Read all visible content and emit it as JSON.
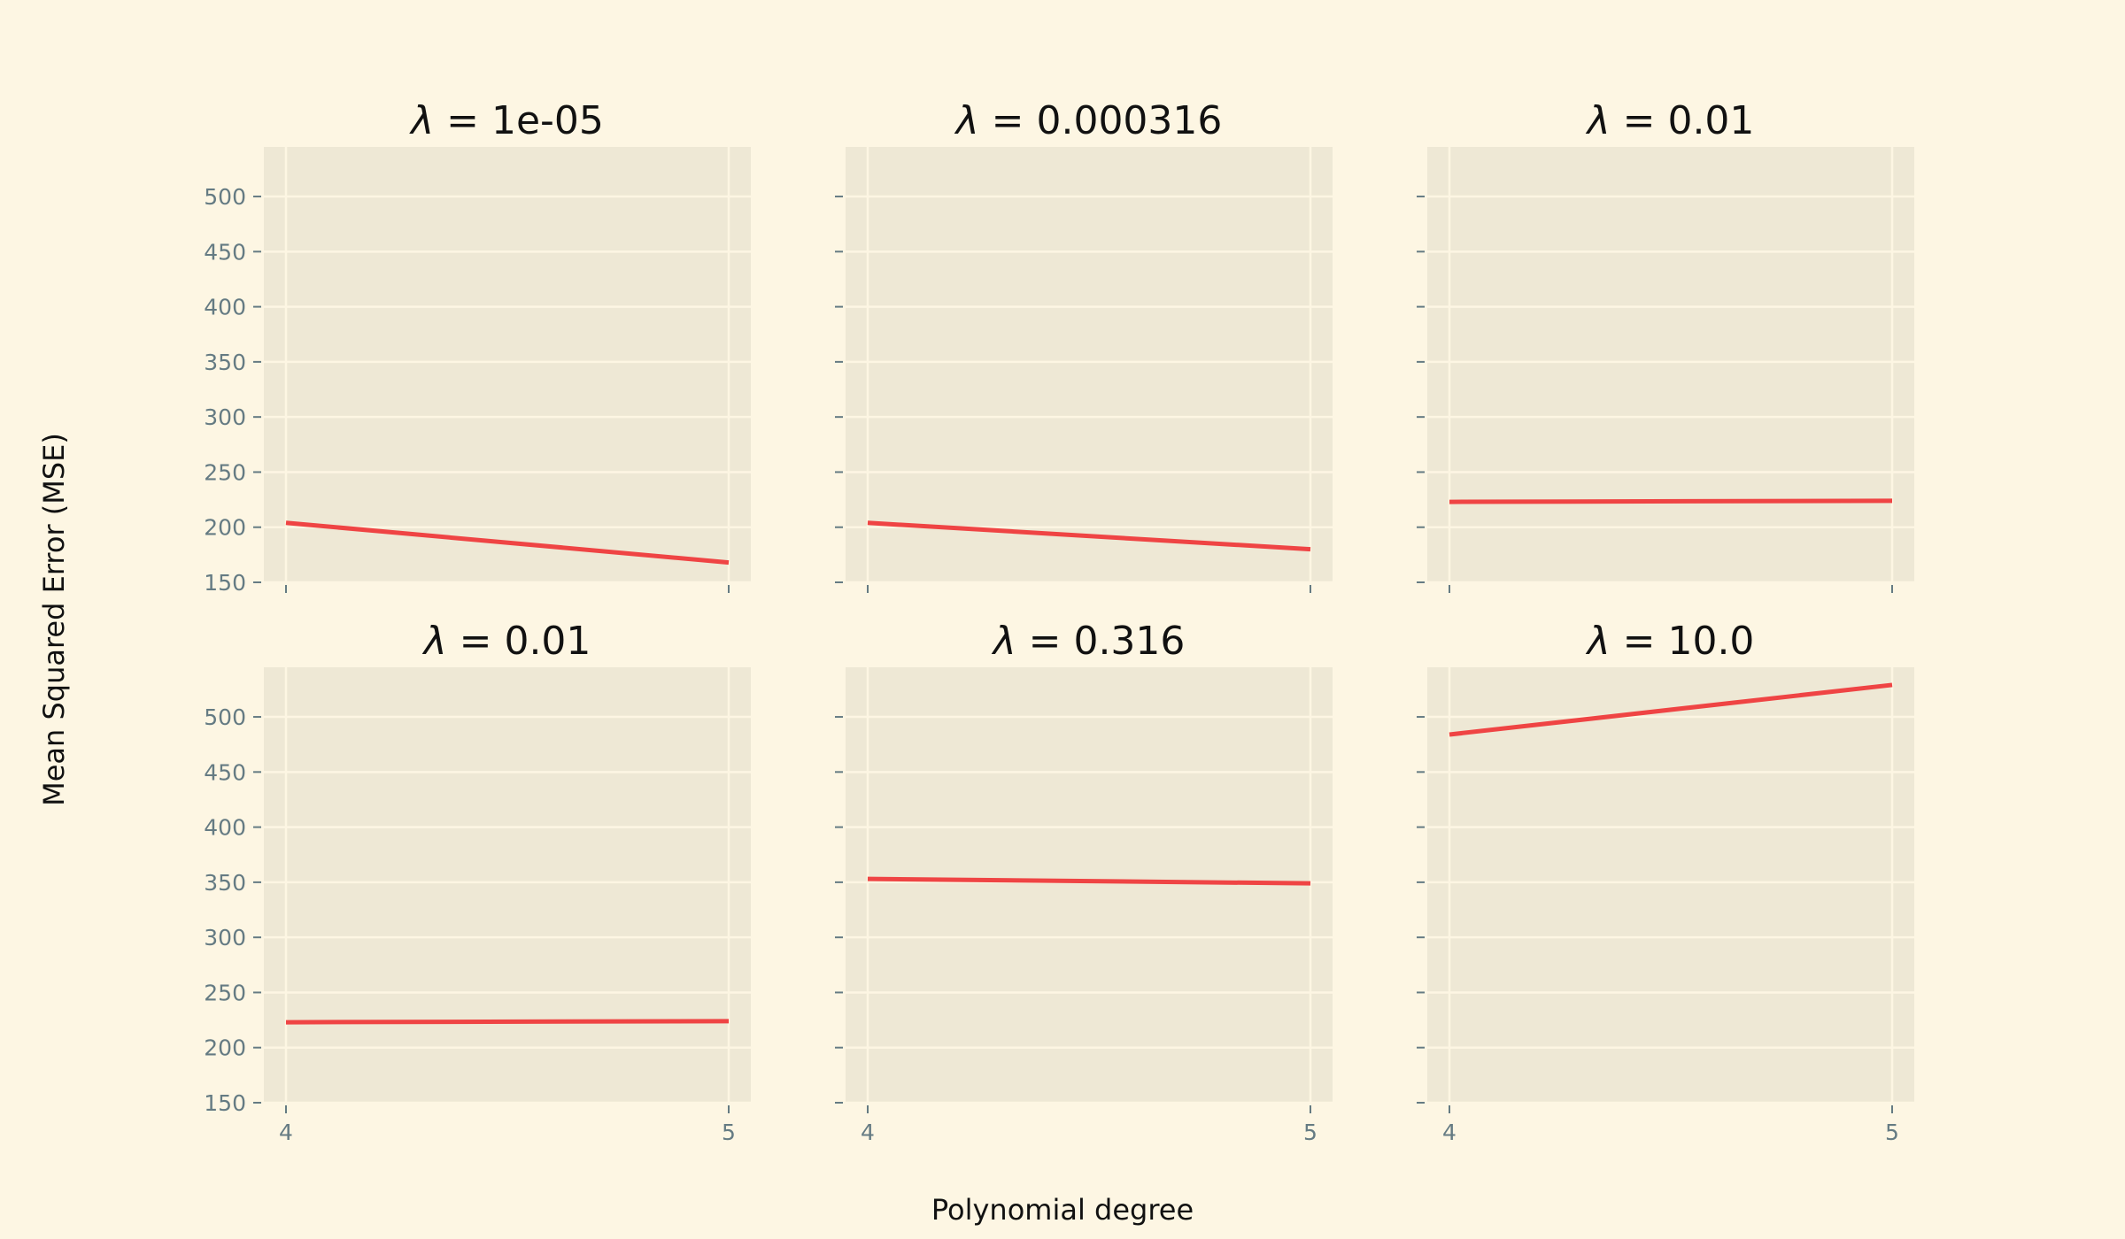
{
  "colors": {
    "figure_bg": "#fdf6e3",
    "axes_bg": "#eee8d5",
    "line": "#ef4444",
    "tick_text": "#657b83"
  },
  "labels": {
    "ylabel": "Mean Squared Error (MSE)",
    "xlabel": "Polynomial degree"
  },
  "chart_data": {
    "type": "line",
    "layout": "2x3 grid of subplots, shared axes",
    "x": [
      4,
      5
    ],
    "xticks": [
      4,
      5
    ],
    "xlim": [
      3.95,
      5.05
    ],
    "ylim": [
      150,
      545
    ],
    "yticks": [
      150,
      200,
      250,
      300,
      350,
      400,
      450,
      500
    ],
    "grid": true,
    "xlabel": "Polynomial degree",
    "ylabel": "Mean Squared Error (MSE)",
    "panels": [
      {
        "title_symbol": "λ",
        "title_value": "= 1e-05",
        "values": [
          204,
          168
        ]
      },
      {
        "title_symbol": "λ",
        "title_value": "= 0.000316",
        "values": [
          204,
          180
        ]
      },
      {
        "title_symbol": "λ",
        "title_value": "= 0.01",
        "values": [
          223,
          224
        ]
      },
      {
        "title_symbol": "λ",
        "title_value": "= 0.01",
        "values": [
          223,
          224
        ]
      },
      {
        "title_symbol": "λ",
        "title_value": "= 0.316",
        "values": [
          353,
          349
        ]
      },
      {
        "title_symbol": "λ",
        "title_value": "= 10.0",
        "values": [
          484,
          529
        ]
      }
    ]
  }
}
